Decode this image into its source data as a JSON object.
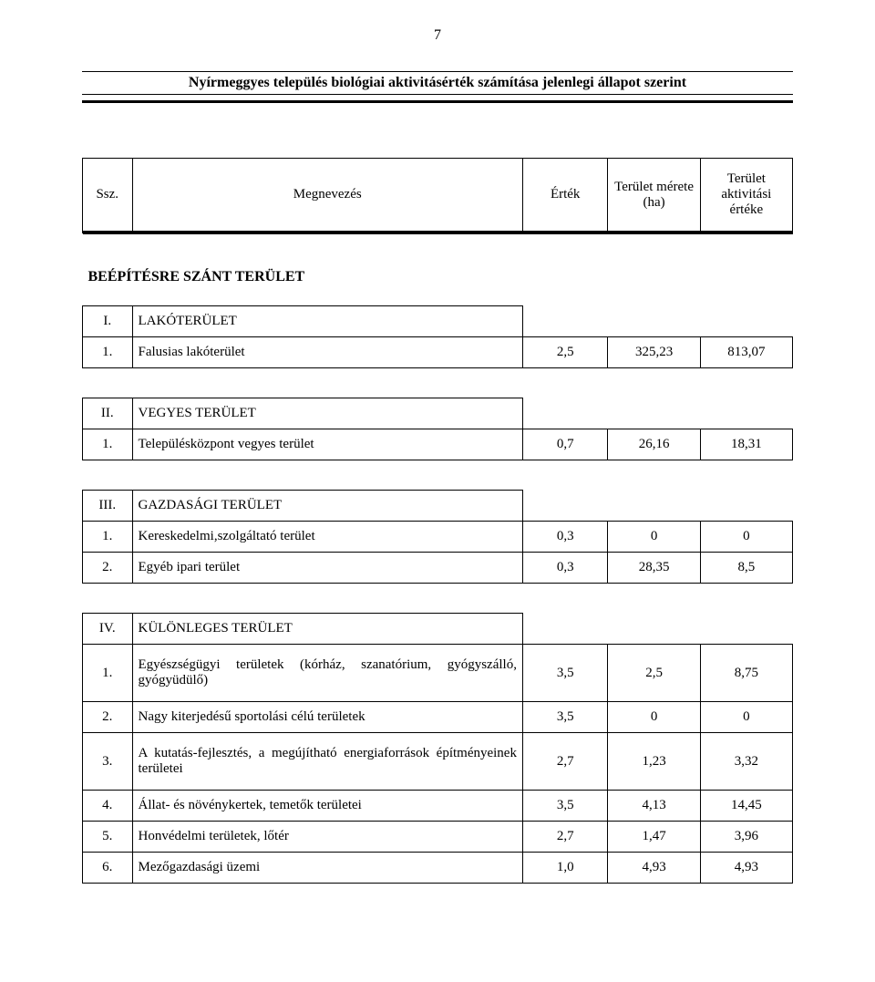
{
  "page_number": "7",
  "title": "Nyírmeggyes település biológiai aktivitásérték számítása  jelenlegi állapot szerint",
  "header": {
    "ssz": "Ssz.",
    "name": "Megnevezés",
    "v1": "Érték",
    "v2": "Terület mérete (ha)",
    "v3": "Terület aktivitási értéke"
  },
  "supersection": {
    "label": "BEÉPÍTÉSRE SZÁNT TERÜLET"
  },
  "sections": [
    {
      "num": "I.",
      "label": "LAKÓTERÜLET",
      "rows": [
        {
          "num": "1.",
          "name": "Falusias lakóterület",
          "v1": "2,5",
          "v2": "325,23",
          "v3": "813,07"
        }
      ]
    },
    {
      "num": "II.",
      "label": "VEGYES TERÜLET",
      "rows": [
        {
          "num": "1.",
          "name": "Településközpont vegyes terület",
          "v1": "0,7",
          "v2": "26,16",
          "v3": "18,31"
        }
      ]
    },
    {
      "num": "III.",
      "label": "GAZDASÁGI TERÜLET",
      "rows": [
        {
          "num": "1.",
          "name": "Kereskedelmi,szolgáltató terület",
          "v1": "0,3",
          "v2": "0",
          "v3": "0"
        },
        {
          "num": "2.",
          "name": "Egyéb ipari terület",
          "v1": "0,3",
          "v2": "28,35",
          "v3": "8,5"
        }
      ]
    },
    {
      "num": "IV.",
      "label": "KÜLÖNLEGES TERÜLET",
      "rows": [
        {
          "num": "1.",
          "name": "Egyészségügyi területek (kórház, szanatórium, gyógyszálló, gyógyüdülő)",
          "v1": "3,5",
          "v2": "2,5",
          "v3": "8,75",
          "tall": true
        },
        {
          "num": "2.",
          "name": "Nagy kiterjedésű sportolási célú területek",
          "v1": "3,5",
          "v2": "0",
          "v3": "0"
        },
        {
          "num": "3.",
          "name": "A kutatás-fejlesztés, a megújítható energiaforrások építményeinek területei",
          "v1": "2,7",
          "v2": "1,23",
          "v3": "3,32",
          "tall": true
        },
        {
          "num": "4.",
          "name": "Állat- és növénykertek, temetők területei",
          "v1": "3,5",
          "v2": "4,13",
          "v3": "14,45"
        },
        {
          "num": "5.",
          "name": "Honvédelmi területek, lőtér",
          "v1": "2,7",
          "v2": "1,47",
          "v3": "3,96"
        },
        {
          "num": "6.",
          "name": "Mezőgazdasági üzemi",
          "v1": "1,0",
          "v2": "4,93",
          "v3": "4,93"
        }
      ]
    }
  ]
}
